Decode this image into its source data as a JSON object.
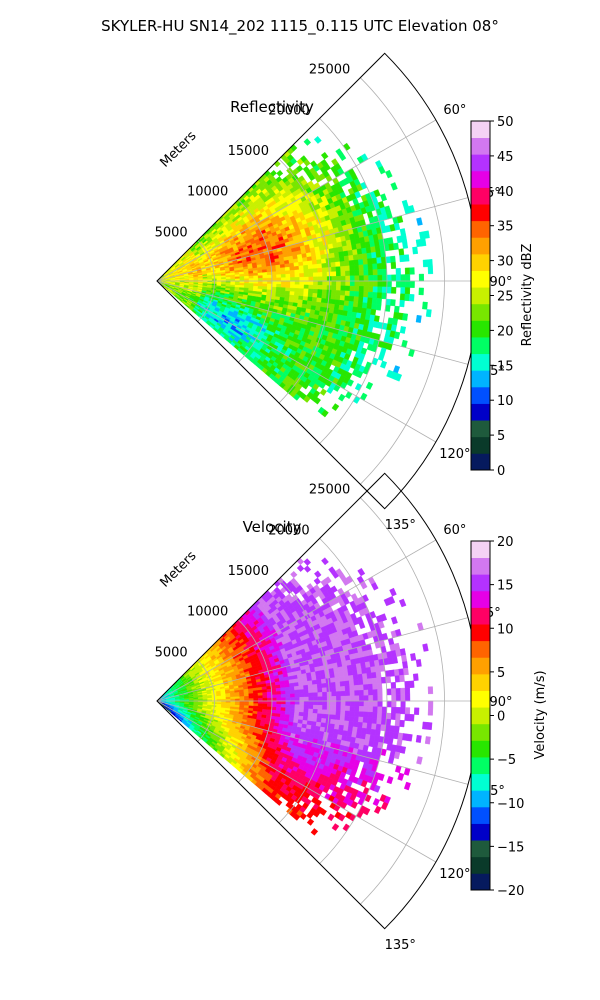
{
  "figure": {
    "suptitle": "SKYLER-HU  SN14_202  1115_0.115 UTC Elevation 08°"
  },
  "chart_data": [
    {
      "type": "heatmap",
      "subtype": "polar-sector",
      "title": "Reflectivity",
      "radial_axis_label": "Meters",
      "radial_ticks": [
        "5000",
        "10000",
        "15000",
        "20000",
        "25000"
      ],
      "radial_tick_values": [
        5000,
        10000,
        15000,
        20000,
        25000
      ],
      "radial_range": [
        0,
        28000
      ],
      "azimuth_range_deg": [
        45,
        135
      ],
      "azimuth_ticks": [
        "60°",
        "75°",
        "90°",
        "105°",
        "120°",
        "135°"
      ],
      "azimuth_tick_values": [
        60,
        75,
        90,
        105,
        120,
        135
      ],
      "grid": true,
      "colorbar": {
        "label": "Reflectivity dBZ",
        "range": [
          0,
          50
        ],
        "ticks": [
          "0",
          "5",
          "10",
          "15",
          "20",
          "25",
          "30",
          "35",
          "40",
          "45",
          "50"
        ],
        "tick_values": [
          0,
          5,
          10,
          15,
          20,
          25,
          30,
          35,
          40,
          45,
          50
        ],
        "colors": [
          "#061a5e",
          "#0a3a2a",
          "#1e5a3c",
          "#0000c8",
          "#0050ff",
          "#00b4ff",
          "#00ffd2",
          "#00ff64",
          "#28e600",
          "#78e600",
          "#c8f000",
          "#ffff00",
          "#ffd200",
          "#ffa000",
          "#ff6400",
          "#ff0000",
          "#ff0064",
          "#e600e6",
          "#b432ff",
          "#d278f0",
          "#f5d2f5"
        ]
      },
      "field_summary": {
        "max_range_m": 22000,
        "azimuth_coverage_deg": [
          45,
          130
        ],
        "dominant_values_dbz": [
          20,
          30
        ],
        "core_value_dbz": 35,
        "core_azimuth_deg": 72,
        "core_range_m": 9000,
        "low_value_dbz": 14,
        "low_azimuth_deg": 118,
        "low_range_m": 7000
      }
    },
    {
      "type": "heatmap",
      "subtype": "polar-sector",
      "title": "Velocity",
      "radial_axis_label": "Meters",
      "radial_ticks": [
        "5000",
        "10000",
        "15000",
        "20000",
        "25000"
      ],
      "radial_tick_values": [
        5000,
        10000,
        15000,
        20000,
        25000
      ],
      "radial_range": [
        0,
        28000
      ],
      "azimuth_range_deg": [
        45,
        135
      ],
      "azimuth_ticks": [
        "60°",
        "75°",
        "90°",
        "105°",
        "120°",
        "135°"
      ],
      "azimuth_tick_values": [
        60,
        75,
        90,
        105,
        120,
        135
      ],
      "grid": true,
      "colorbar": {
        "label": "Velocity (m/s)",
        "range": [
          -20,
          20
        ],
        "ticks": [
          "−20",
          "−15",
          "−10",
          "−5",
          "0",
          "5",
          "10",
          "15",
          "20"
        ],
        "tick_values": [
          -20,
          -15,
          -10,
          -5,
          0,
          5,
          10,
          15,
          20
        ],
        "colors": [
          "#061a5e",
          "#0a3a2a",
          "#1e5a3c",
          "#0000c8",
          "#0050ff",
          "#00b4ff",
          "#00ffd2",
          "#00ff64",
          "#28e600",
          "#78e600",
          "#c8f000",
          "#ffff00",
          "#ffd200",
          "#ffa000",
          "#ff6400",
          "#ff0000",
          "#ff0064",
          "#e600e6",
          "#b432ff",
          "#d278f0",
          "#f5d2f5"
        ]
      },
      "field_summary": {
        "max_range_m": 22000,
        "azimuth_coverage_deg": [
          45,
          130
        ],
        "near_value_ms": -10,
        "mid_value_ms": 0,
        "band_value_ms": 10,
        "far_value_ms": 16
      }
    }
  ]
}
